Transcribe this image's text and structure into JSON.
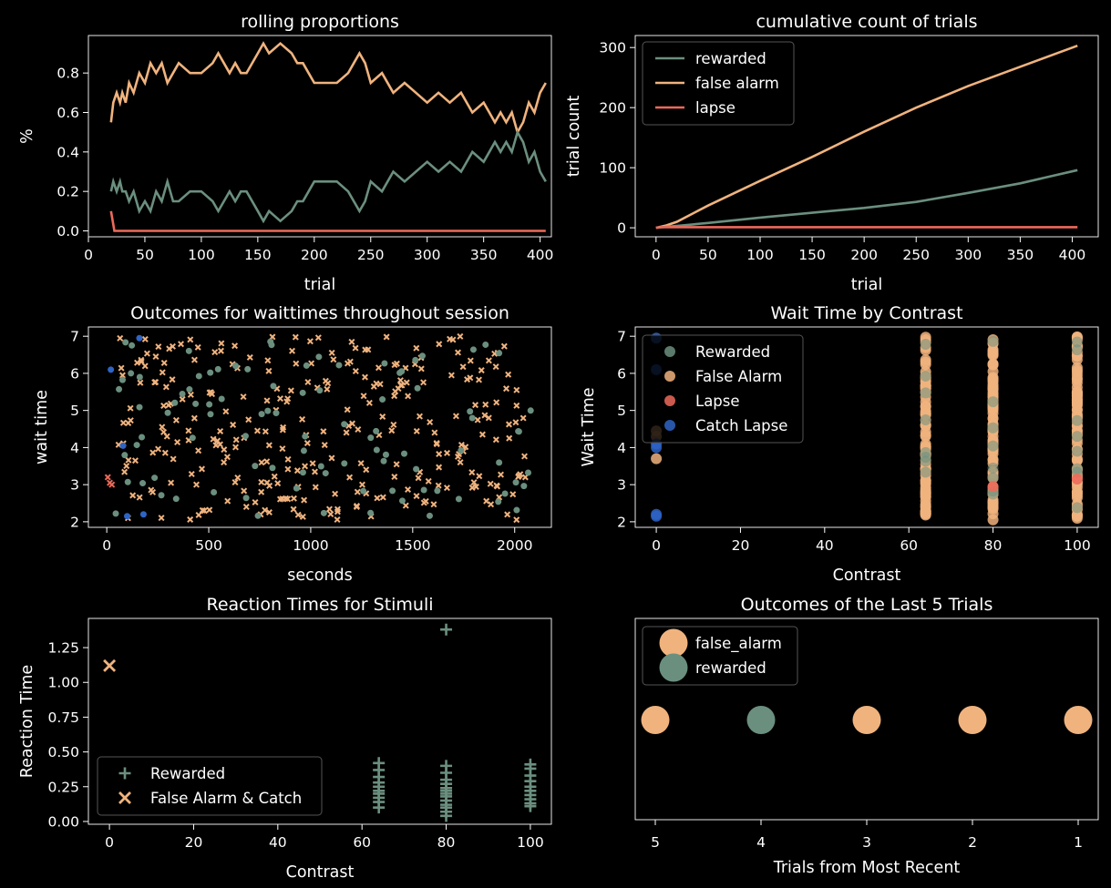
{
  "colors": {
    "rewarded": "#6b8f7f",
    "false_alarm": "#f0b37e",
    "lapse": "#ed6a5a",
    "catch_lapse": "#2e64c6",
    "axis": "#ffffff",
    "background": "#000000"
  },
  "chart_data": [
    {
      "id": "rolling",
      "type": "line",
      "title": "rolling proportions",
      "xlabel": "trial",
      "ylabel": "%",
      "xlim": [
        0,
        410
      ],
      "ylim": [
        -0.03,
        0.99
      ],
      "xticks": [
        0,
        50,
        100,
        150,
        200,
        250,
        300,
        350,
        400
      ],
      "yticks": [
        0.0,
        0.2,
        0.4,
        0.6,
        0.8
      ],
      "ytick_labels": [
        "0.0",
        "0.2",
        "0.4",
        "0.6",
        "0.8"
      ],
      "series": [
        {
          "key": "false_alarm",
          "x": [
            20,
            22,
            25,
            28,
            30,
            33,
            36,
            40,
            45,
            50,
            55,
            60,
            65,
            70,
            75,
            80,
            90,
            100,
            110,
            115,
            120,
            125,
            130,
            135,
            140,
            150,
            155,
            160,
            170,
            180,
            185,
            190,
            195,
            200,
            210,
            220,
            230,
            235,
            240,
            245,
            250,
            260,
            270,
            280,
            290,
            300,
            310,
            320,
            330,
            340,
            350,
            355,
            360,
            365,
            370,
            375,
            380,
            385,
            390,
            395,
            400,
            405
          ],
          "y": [
            0.55,
            0.65,
            0.7,
            0.65,
            0.7,
            0.65,
            0.75,
            0.7,
            0.8,
            0.75,
            0.85,
            0.8,
            0.85,
            0.75,
            0.8,
            0.85,
            0.8,
            0.8,
            0.85,
            0.9,
            0.85,
            0.8,
            0.85,
            0.8,
            0.8,
            0.9,
            0.95,
            0.9,
            0.95,
            0.9,
            0.85,
            0.85,
            0.8,
            0.75,
            0.75,
            0.75,
            0.8,
            0.85,
            0.9,
            0.85,
            0.75,
            0.8,
            0.7,
            0.75,
            0.7,
            0.65,
            0.7,
            0.65,
            0.7,
            0.6,
            0.65,
            0.6,
            0.55,
            0.6,
            0.55,
            0.6,
            0.5,
            0.55,
            0.65,
            0.6,
            0.7,
            0.75
          ]
        },
        {
          "key": "rewarded",
          "x": [
            20,
            22,
            25,
            28,
            30,
            33,
            36,
            40,
            45,
            50,
            55,
            60,
            65,
            70,
            75,
            80,
            90,
            100,
            110,
            115,
            120,
            125,
            130,
            135,
            140,
            150,
            155,
            160,
            170,
            180,
            185,
            190,
            195,
            200,
            210,
            220,
            230,
            235,
            240,
            245,
            250,
            260,
            270,
            280,
            290,
            300,
            310,
            320,
            330,
            340,
            350,
            355,
            360,
            365,
            370,
            375,
            380,
            385,
            390,
            395,
            400,
            405
          ],
          "y": [
            0.2,
            0.25,
            0.2,
            0.25,
            0.2,
            0.2,
            0.15,
            0.2,
            0.1,
            0.15,
            0.1,
            0.2,
            0.15,
            0.25,
            0.15,
            0.15,
            0.2,
            0.2,
            0.15,
            0.1,
            0.15,
            0.2,
            0.15,
            0.2,
            0.2,
            0.1,
            0.05,
            0.1,
            0.05,
            0.1,
            0.15,
            0.15,
            0.2,
            0.25,
            0.25,
            0.25,
            0.2,
            0.15,
            0.1,
            0.15,
            0.25,
            0.2,
            0.3,
            0.25,
            0.3,
            0.35,
            0.3,
            0.35,
            0.3,
            0.4,
            0.35,
            0.4,
            0.45,
            0.4,
            0.45,
            0.4,
            0.5,
            0.45,
            0.35,
            0.4,
            0.3,
            0.25
          ]
        },
        {
          "key": "lapse",
          "x": [
            20,
            23,
            30,
            100,
            200,
            300,
            405
          ],
          "y": [
            0.1,
            0.0,
            0.0,
            0.0,
            0.0,
            0.0,
            0.0
          ]
        }
      ]
    },
    {
      "id": "cumulative",
      "type": "line",
      "title": "cumulative count of trials",
      "xlabel": "trial",
      "ylabel": "trial count",
      "xlim": [
        -20,
        425
      ],
      "ylim": [
        -15,
        320
      ],
      "xticks": [
        0,
        50,
        100,
        150,
        200,
        250,
        300,
        350,
        400
      ],
      "yticks": [
        0,
        100,
        200,
        300
      ],
      "legend": {
        "position": "upper-left",
        "entries": [
          {
            "key": "rewarded",
            "label": "rewarded"
          },
          {
            "key": "false_alarm",
            "label": "false alarm"
          },
          {
            "key": "lapse",
            "label": "lapse"
          }
        ]
      },
      "series": [
        {
          "key": "false_alarm",
          "x": [
            0,
            10,
            20,
            50,
            100,
            150,
            200,
            250,
            300,
            350,
            405
          ],
          "y": [
            0,
            4,
            10,
            37,
            78,
            118,
            160,
            200,
            236,
            268,
            303
          ]
        },
        {
          "key": "rewarded",
          "x": [
            0,
            20,
            50,
            100,
            150,
            200,
            250,
            300,
            350,
            405
          ],
          "y": [
            0,
            3,
            8,
            17,
            25,
            33,
            43,
            58,
            74,
            96
          ]
        },
        {
          "key": "lapse",
          "x": [
            0,
            5,
            405
          ],
          "y": [
            0,
            1,
            1
          ]
        }
      ]
    },
    {
      "id": "waittimes",
      "type": "scatter",
      "title": "Outcomes for waittimes throughout session",
      "xlabel": "seconds",
      "ylabel": "wait time",
      "xlim": [
        -90,
        2180
      ],
      "ylim": [
        1.85,
        7.25
      ],
      "xticks": [
        0,
        500,
        1000,
        1500,
        2000
      ],
      "yticks": [
        2,
        3,
        4,
        5,
        6,
        7
      ],
      "seed": 7,
      "n_false_alarm": 300,
      "n_rewarded": 95,
      "lapse_points": [
        [
          5,
          3.2
        ],
        [
          15,
          3.05
        ],
        [
          25,
          3.0
        ]
      ],
      "catch_points": [
        [
          20,
          6.1
        ],
        [
          80,
          4.05
        ],
        [
          100,
          2.15
        ],
        [
          160,
          6.95
        ],
        [
          180,
          2.2
        ]
      ]
    },
    {
      "id": "waitcontrast",
      "type": "scatter",
      "title": "Wait Time by Contrast",
      "xlabel": "Contrast",
      "ylabel": "Wait Time",
      "xlim": [
        -5,
        105
      ],
      "ylim": [
        1.85,
        7.25
      ],
      "xticks": [
        0,
        20,
        40,
        60,
        80,
        100
      ],
      "yticks": [
        2,
        3,
        4,
        5,
        6,
        7
      ],
      "categories": [
        0,
        64,
        80,
        100
      ],
      "seed": 11,
      "legend": {
        "position": "upper-left",
        "entries": [
          {
            "key": "rewarded",
            "label": "Rewarded"
          },
          {
            "key": "false_alarm",
            "label": "False Alarm"
          },
          {
            "key": "lapse",
            "label": "Lapse"
          },
          {
            "key": "catch_lapse",
            "label": "Catch Lapse"
          }
        ]
      },
      "contrast0_points": [
        [
          0,
          6.95,
          "catch_lapse"
        ],
        [
          0,
          6.1,
          "catch_lapse"
        ],
        [
          0,
          4.45,
          "false_alarm"
        ],
        [
          0,
          4.3,
          "false_alarm"
        ],
        [
          0,
          4.1,
          "catch_lapse"
        ],
        [
          0,
          4.0,
          "catch_lapse"
        ],
        [
          0,
          3.7,
          "false_alarm"
        ],
        [
          0,
          2.2,
          "catch_lapse"
        ],
        [
          0,
          2.15,
          "catch_lapse"
        ]
      ],
      "lapse_points": [
        [
          80,
          2.95
        ],
        [
          100,
          3.15
        ]
      ]
    },
    {
      "id": "reaction",
      "type": "scatter",
      "title": "Reaction Times for Stimuli",
      "xlabel": "Contrast",
      "ylabel": "Reaction Time",
      "xlim": [
        -5,
        105
      ],
      "ylim": [
        -0.02,
        1.46
      ],
      "xticks": [
        0,
        20,
        40,
        60,
        80,
        100
      ],
      "yticks": [
        0.0,
        0.25,
        0.5,
        0.75,
        1.0,
        1.25
      ],
      "ytick_labels": [
        "0.00",
        "0.25",
        "0.50",
        "0.75",
        "1.00",
        "1.25"
      ],
      "legend": {
        "position": "lower-left",
        "entries": [
          {
            "key": "rewarded",
            "label": "Rewarded",
            "marker": "+"
          },
          {
            "key": "false_alarm",
            "label": "False Alarm & Catch",
            "marker": "x"
          }
        ]
      },
      "false_alarm_points": [
        [
          0,
          1.12
        ]
      ],
      "rewarded_points": [
        [
          64,
          0.42
        ],
        [
          64,
          0.37
        ],
        [
          64,
          0.32
        ],
        [
          64,
          0.28
        ],
        [
          64,
          0.25
        ],
        [
          64,
          0.22
        ],
        [
          64,
          0.2
        ],
        [
          64,
          0.17
        ],
        [
          64,
          0.14
        ],
        [
          64,
          0.1
        ],
        [
          80,
          1.38
        ],
        [
          80,
          0.4
        ],
        [
          80,
          0.35
        ],
        [
          80,
          0.3
        ],
        [
          80,
          0.27
        ],
        [
          80,
          0.24
        ],
        [
          80,
          0.22
        ],
        [
          80,
          0.2
        ],
        [
          80,
          0.18
        ],
        [
          80,
          0.15
        ],
        [
          80,
          0.12
        ],
        [
          80,
          0.1
        ],
        [
          80,
          0.07
        ],
        [
          80,
          0.04
        ],
        [
          100,
          0.41
        ],
        [
          100,
          0.38
        ],
        [
          100,
          0.33
        ],
        [
          100,
          0.29
        ],
        [
          100,
          0.25
        ],
        [
          100,
          0.22
        ],
        [
          100,
          0.19
        ],
        [
          100,
          0.16
        ],
        [
          100,
          0.13
        ],
        [
          100,
          0.11
        ]
      ]
    },
    {
      "id": "lasttrials",
      "type": "scatter",
      "title": "Outcomes of the Last 5 Trials",
      "xlabel": "Trials from Most Recent",
      "ylabel": "",
      "categories": [
        "5",
        "4",
        "3",
        "2",
        "1"
      ],
      "outcomes": [
        "false_alarm",
        "rewarded",
        "false_alarm",
        "false_alarm",
        "false_alarm"
      ],
      "legend": {
        "position": "upper-left",
        "entries": [
          {
            "key": "false_alarm",
            "label": "false_alarm"
          },
          {
            "key": "rewarded",
            "label": "rewarded"
          }
        ]
      }
    }
  ]
}
